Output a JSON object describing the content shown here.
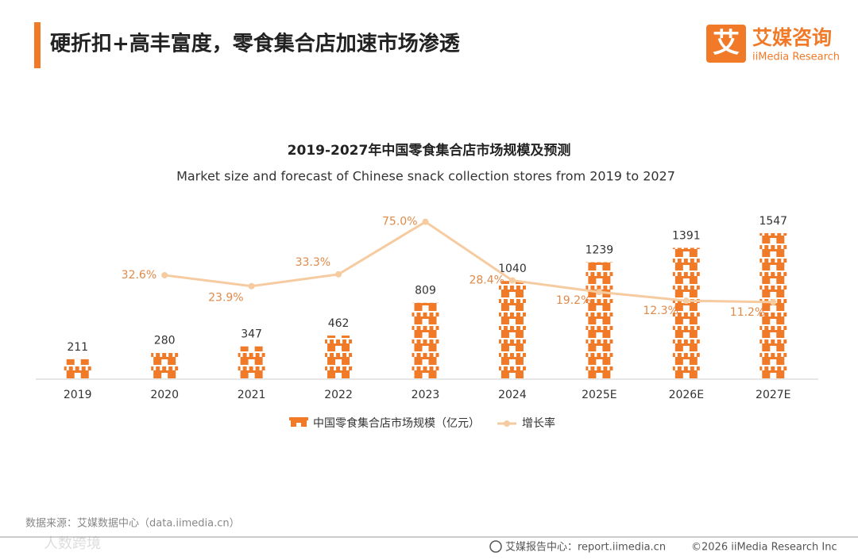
{
  "header": {
    "title": "硬折扣+高丰富度，零食集合店加速市场渗透",
    "logo_mark": "艾",
    "logo_cn": "艾媒咨询",
    "logo_en": "iiMedia Research"
  },
  "chart_data": {
    "type": "bar",
    "title": "2019-2027年中国零食集合店市场规模及预测",
    "subtitle": "Market size and forecast of Chinese snack collection stores from 2019 to 2027",
    "categories": [
      "2019",
      "2020",
      "2021",
      "2022",
      "2023",
      "2024",
      "2025E",
      "2026E",
      "2027E"
    ],
    "series": [
      {
        "name": "中国零食集合店市场规模（亿元）",
        "type": "bar",
        "color": "#f07a28",
        "values": [
          211,
          280,
          347,
          462,
          809,
          1040,
          1239,
          1391,
          1547
        ]
      },
      {
        "name": "增长率",
        "type": "line",
        "axis": "y2",
        "color": "#f6cba0",
        "values": [
          null,
          32.6,
          23.9,
          33.3,
          75.0,
          28.4,
          19.2,
          12.3,
          11.2
        ],
        "value_labels": [
          null,
          "32.6%",
          "23.9%",
          "33.3%",
          "75.0%",
          "28.4%",
          "19.2%",
          "12.3%",
          "11.2%"
        ]
      }
    ],
    "ylim": [
      0,
      2000
    ],
    "y2lim": [
      -50,
      100
    ],
    "grid": false
  },
  "footer": {
    "source": "数据来源：艾媒数据中心（data.iimedia.cn）",
    "report_center": "艾媒报告中心：report.iimedia.cn",
    "copyright": "©2026  iiMedia Research Inc",
    "watermark": "人数跨境"
  }
}
